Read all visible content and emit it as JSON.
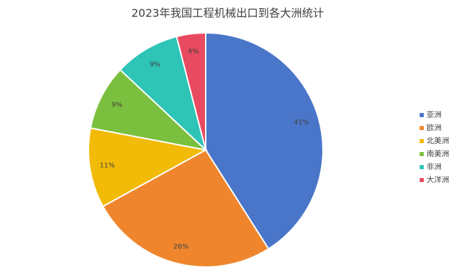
{
  "chart_data": {
    "type": "pie",
    "title": "2023年我国工程机械出口到各大洲统计",
    "categories": [
      "亚洲",
      "欧洲",
      "北美洲",
      "南美洲",
      "非洲",
      "大洋洲"
    ],
    "values": [
      41,
      26,
      11,
      9,
      9,
      4
    ],
    "value_labels": [
      "41%",
      "26%",
      "11%",
      "9%",
      "9%",
      "4%"
    ],
    "colors": [
      "#4a76c9",
      "#ef862d",
      "#f2bb07",
      "#7bbf3e",
      "#2ec4b6",
      "#e84a5f"
    ],
    "legend": "right"
  }
}
